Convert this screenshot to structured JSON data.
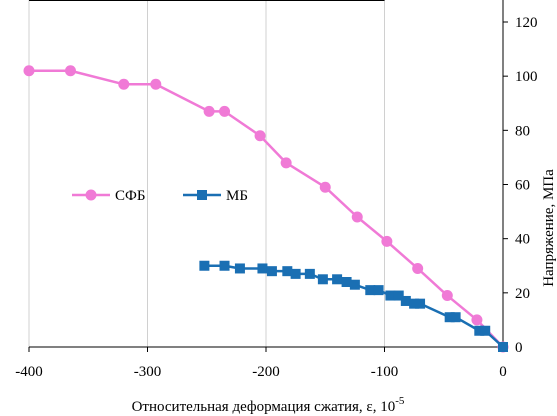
{
  "chart_data": {
    "type": "line",
    "xlabel": "Относительная деформация сжатия, ε, 10",
    "xlabel_sup": "-5",
    "ylabel": "Напряжение, МПа",
    "xlim": [
      -400,
      0
    ],
    "ylim": [
      0,
      120
    ],
    "x_ticks": [
      "-400",
      "-300",
      "-200",
      "-100",
      "0"
    ],
    "y_ticks": [
      "0",
      "20",
      "40",
      "60",
      "80",
      "100",
      "120"
    ],
    "grid": "vertical",
    "y_axis_side": "right",
    "legend_position": "center-left",
    "series": [
      {
        "name": "СФБ",
        "color": "#f07ad6",
        "marker": "circle",
        "x": [
          -400,
          -365,
          -320,
          -293,
          -248,
          -235,
          -205,
          -183,
          -150,
          -123,
          -98,
          -72,
          -47,
          -22,
          0
        ],
        "y": [
          102,
          102,
          97,
          97,
          87,
          87,
          78,
          68,
          59,
          48,
          39,
          29,
          19,
          10,
          0
        ]
      },
      {
        "name": "МБ",
        "color": "#1a6fb3",
        "marker": "square",
        "x": [
          -252,
          -235,
          -222,
          -203,
          -195,
          -182,
          -175,
          -163,
          -152,
          -140,
          -132,
          -125,
          -112,
          -105,
          -95,
          -88,
          -82,
          -75,
          -70,
          -45,
          -40,
          -20,
          -15,
          0
        ],
        "y": [
          30,
          30,
          29,
          29,
          28,
          28,
          27,
          27,
          25,
          25,
          24,
          23,
          21,
          21,
          19,
          19,
          17,
          16,
          16,
          11,
          11,
          6,
          6,
          0
        ]
      }
    ]
  }
}
